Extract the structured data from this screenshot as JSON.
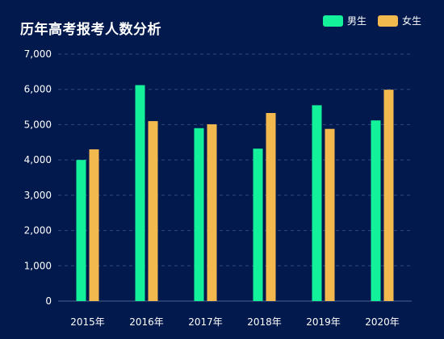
{
  "chart_data": {
    "type": "bar",
    "title": "历年高考报考人数分析",
    "categories": [
      "2015年",
      "2016年",
      "2017年",
      "2018年",
      "2019年",
      "2020年"
    ],
    "series": [
      {
        "name": "男生",
        "color": "#14f19b",
        "values": [
          4000,
          6120,
          4900,
          4320,
          5550,
          5120
        ]
      },
      {
        "name": "女生",
        "color": "#f2b94e",
        "values": [
          4300,
          5100,
          5010,
          5330,
          4880,
          5990
        ]
      }
    ],
    "yticks": [
      "0",
      "1,000",
      "2,000",
      "3,000",
      "4,000",
      "5,000",
      "6,000",
      "7,000"
    ],
    "ylim": [
      0,
      7000
    ],
    "grid": true,
    "legend_position": "top-right"
  }
}
